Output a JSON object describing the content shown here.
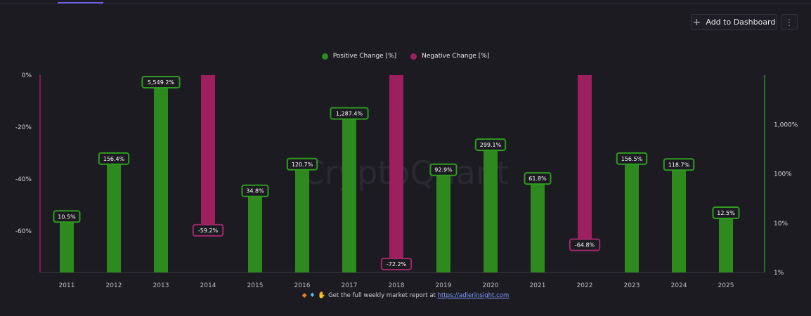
{
  "toolbar": {
    "add_to_dashboard_label": "Add to Dashboard",
    "more_icon": "more-vertical-icon",
    "plus_icon": "plus-icon"
  },
  "watermark": "CryptoQuant",
  "footer": {
    "text": "Get the full weekly market report at",
    "link": "https://adlerinsight.com",
    "icons": [
      "diamond-icon",
      "gem-icon",
      "raised-hands-icon"
    ]
  },
  "chart_data": {
    "type": "bar",
    "categories": [
      "2011",
      "2012",
      "2013",
      "2014",
      "2015",
      "2016",
      "2017",
      "2018",
      "2019",
      "2020",
      "2021",
      "2022",
      "2023",
      "2024",
      "2025"
    ],
    "series": [
      {
        "name": "Positive Change [%]",
        "color": "#2e8a1e",
        "axis": "right",
        "values": [
          10.5,
          156.4,
          5549.2,
          null,
          34.8,
          120.7,
          1287.4,
          null,
          92.9,
          299.1,
          61.8,
          null,
          156.5,
          118.7,
          12.5
        ],
        "labels": [
          "10.5%",
          "156.4%",
          "5,549.2%",
          null,
          "34.8%",
          "120.7%",
          "1,287.4%",
          null,
          "92.9%",
          "299.1%",
          "61.8%",
          null,
          "156.5%",
          "118.7%",
          "12.5%"
        ]
      },
      {
        "name": "Negative Change [%]",
        "color": "#9e1f5e",
        "axis": "left",
        "values": [
          null,
          null,
          null,
          -59.2,
          null,
          null,
          null,
          -72.2,
          null,
          null,
          null,
          -64.8,
          null,
          null,
          null
        ],
        "labels": [
          null,
          null,
          null,
          "-59.2%",
          null,
          null,
          null,
          "-72.2%",
          null,
          null,
          null,
          "-64.8%",
          null,
          null,
          null
        ]
      }
    ],
    "left_axis": {
      "ticks": [
        "0%",
        "-20%",
        "-40%",
        "-60%"
      ],
      "values": [
        0,
        -20,
        -40,
        -60
      ],
      "range": [
        0,
        -76
      ],
      "color": "#9e1f5e"
    },
    "right_axis": {
      "scale": "log",
      "ticks": [
        "1%",
        "10%",
        "100%",
        "1,000%"
      ],
      "values": [
        1,
        10,
        100,
        1000
      ],
      "range": [
        1,
        10000
      ],
      "color": "#2e8a1e"
    },
    "grid": false,
    "legend": "top-center"
  }
}
